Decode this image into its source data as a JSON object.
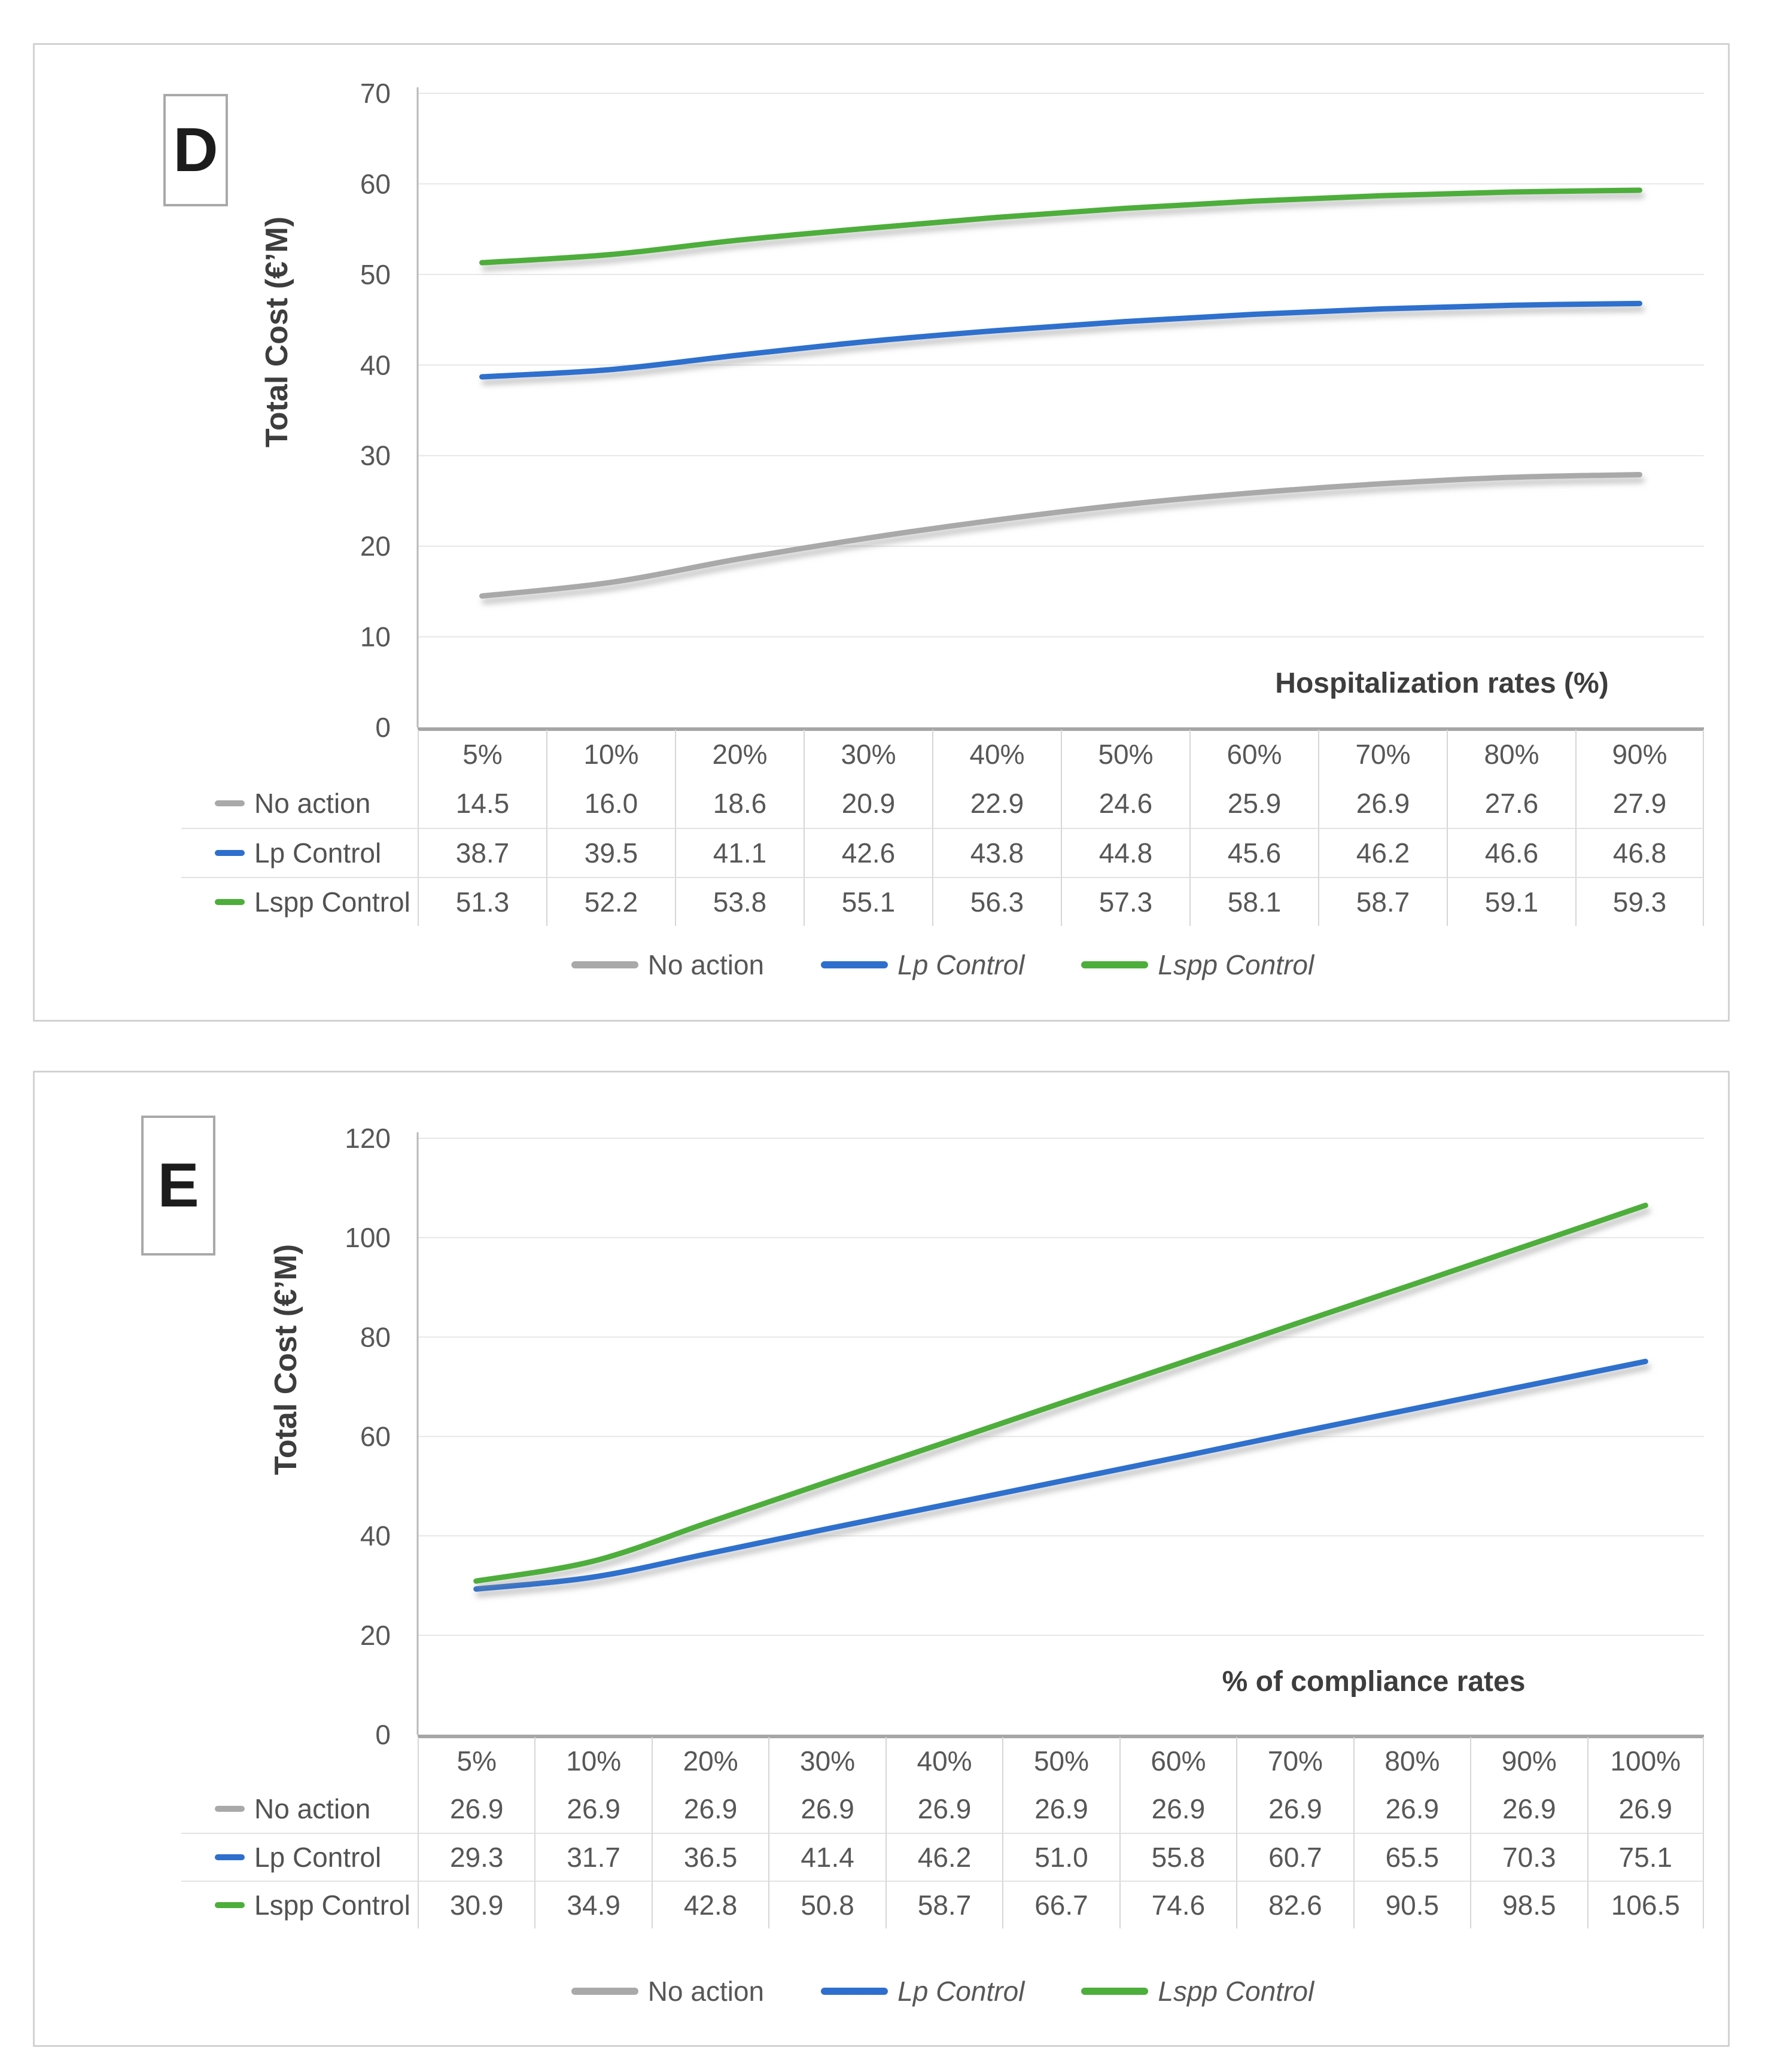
{
  "page": {
    "background": "#ffffff"
  },
  "colors": {
    "axis": "#a6a6a6",
    "axis_left": "#b9b9b9",
    "gridline": "#e7e7e7",
    "table_separator": "#d6d6d6",
    "row_line": "#e2e2e2",
    "tick_text": "#575757",
    "title_text": "#3d3d3d",
    "series_gray": "#a9a9a9",
    "series_blue": "#2e6fcd",
    "series_green": "#4dae3b",
    "line_shadow": "#8a8a8a"
  },
  "chart_data": [
    {
      "type": "line",
      "panel_label": "D",
      "title": "",
      "ylabel": "Total Cost (€’M)",
      "xlabel": "Hospitalization rates (%)",
      "categories": [
        "5%",
        "10%",
        "20%",
        "30%",
        "40%",
        "50%",
        "60%",
        "70%",
        "80%",
        "90%"
      ],
      "y_ticks": [
        0,
        10,
        20,
        30,
        40,
        50,
        60,
        70
      ],
      "ylim": [
        0,
        70
      ],
      "grid": true,
      "legend_position": "bottom",
      "series": [
        {
          "name": "No action",
          "color": "#a9a9a9",
          "italic_legend": false,
          "values": [
            14.5,
            16.0,
            18.6,
            20.9,
            22.9,
            24.6,
            25.9,
            26.9,
            27.6,
            27.9
          ]
        },
        {
          "name": "Lp Control",
          "color": "#2e6fcd",
          "italic_legend": true,
          "values": [
            38.7,
            39.5,
            41.1,
            42.6,
            43.8,
            44.8,
            45.6,
            46.2,
            46.6,
            46.8
          ]
        },
        {
          "name": "Lspp Control",
          "color": "#4dae3b",
          "italic_legend": true,
          "values": [
            51.3,
            52.2,
            53.8,
            55.1,
            56.3,
            57.3,
            58.1,
            58.7,
            59.1,
            59.3
          ]
        }
      ]
    },
    {
      "type": "line",
      "panel_label": "E",
      "title": "",
      "ylabel": "Total Cost (€’M)",
      "xlabel": "% of compliance rates",
      "categories": [
        "5%",
        "10%",
        "20%",
        "30%",
        "40%",
        "50%",
        "60%",
        "70%",
        "80%",
        "90%",
        "100%"
      ],
      "y_ticks": [
        0,
        20,
        40,
        60,
        80,
        100,
        120
      ],
      "ylim": [
        0,
        120
      ],
      "grid": true,
      "legend_position": "bottom",
      "series": [
        {
          "name": "No action",
          "color": "#a9a9a9",
          "italic_legend": false,
          "values": [
            26.9,
            26.9,
            26.9,
            26.9,
            26.9,
            26.9,
            26.9,
            26.9,
            26.9,
            26.9,
            26.9
          ]
        },
        {
          "name": "Lp Control",
          "color": "#2e6fcd",
          "italic_legend": true,
          "values": [
            29.3,
            31.7,
            36.5,
            41.4,
            46.2,
            51.0,
            55.8,
            60.7,
            65.5,
            70.3,
            75.1
          ]
        },
        {
          "name": "Lspp Control",
          "color": "#4dae3b",
          "italic_legend": true,
          "values": [
            30.9,
            34.9,
            42.8,
            50.8,
            58.7,
            66.7,
            74.6,
            82.6,
            90.5,
            98.5,
            106.5
          ]
        }
      ]
    }
  ]
}
